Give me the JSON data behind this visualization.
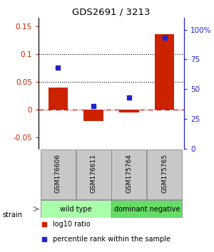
{
  "title": "GDS2691 / 3213",
  "categories": [
    "GSM176606",
    "GSM176611",
    "GSM175764",
    "GSM175765"
  ],
  "log10_ratio": [
    0.04,
    -0.02,
    -0.005,
    0.135
  ],
  "percentile_rank": [
    0.68,
    0.36,
    0.43,
    0.93
  ],
  "bar_color": "#cc2200",
  "dot_color": "#2222cc",
  "ylim_left": [
    -0.07,
    0.165
  ],
  "ylim_right": [
    0,
    1.1
  ],
  "yticks_left": [
    -0.05,
    0,
    0.05,
    0.1,
    0.15
  ],
  "yticks_right": [
    0,
    0.25,
    0.5,
    0.75,
    1.0
  ],
  "yticklabels_left": [
    "-0.05",
    "0",
    "0.05",
    "0.1",
    "0.15"
  ],
  "yticklabels_right": [
    "0",
    "25",
    "50",
    "75",
    "100%"
  ],
  "hlines": [
    0.05,
    0.1
  ],
  "groups": [
    {
      "label": "wild type",
      "indices": [
        0,
        1
      ],
      "color": "#aaffaa"
    },
    {
      "label": "dominant negative",
      "indices": [
        2,
        3
      ],
      "color": "#66dd66"
    }
  ],
  "strain_label": "strain",
  "legend": [
    {
      "label": "log10 ratio",
      "color": "#cc2200"
    },
    {
      "label": "percentile rank within the sample",
      "color": "#2222cc"
    }
  ],
  "bar_width": 0.55,
  "zero_line_color": "#cc0000",
  "zero_linestyle": "-.",
  "hline_color": "#000000",
  "hline_style": ":",
  "box_gray": "#c8c8c8",
  "box_outline": "#888888"
}
